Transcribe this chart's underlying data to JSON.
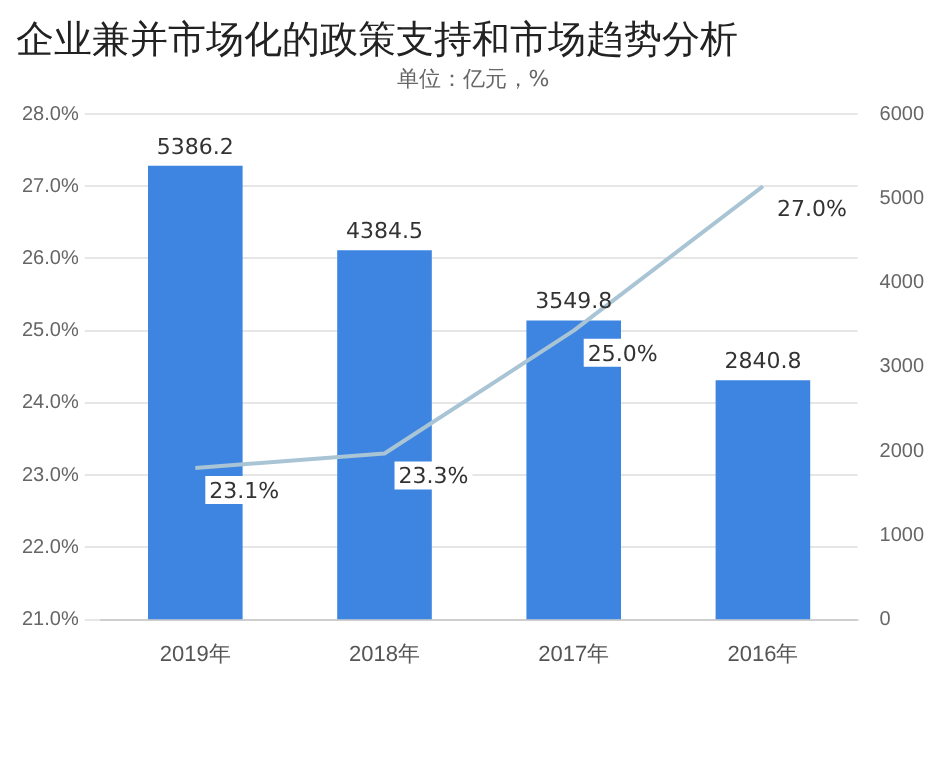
{
  "chart_data": {
    "type": "bar",
    "title": "企业兼并市场化的政策支持和市场趋势分析",
    "annotations": [
      "单位：亿元，%"
    ],
    "categories": [
      "2019年",
      "2018年",
      "2017年",
      "2016年"
    ],
    "series": [
      {
        "axis": "y2",
        "color": "#3d85e0",
        "values": [
          5386.2,
          4384.5,
          3549.8,
          2840.8
        ],
        "value_labels": [
          "5386.2",
          "4384.5",
          "3549.8",
          "2840.8"
        ]
      },
      {
        "type": "line",
        "axis": "y",
        "color": "#a9c4d4",
        "values": [
          23.1,
          23.3,
          25.0,
          27.0
        ],
        "value_labels": [
          "23.1%",
          "23.3%",
          "25.0%",
          "27.0%"
        ]
      }
    ],
    "ylim": [
      21,
      28
    ],
    "yticks": [
      {
        "value": 21,
        "label": "21.0%"
      },
      {
        "value": 22,
        "label": "22.0%"
      },
      {
        "value": 23,
        "label": "23.0%"
      },
      {
        "value": 24,
        "label": "24.0%"
      },
      {
        "value": 25,
        "label": "25.0%"
      },
      {
        "value": 26,
        "label": "26.0%"
      },
      {
        "value": 27,
        "label": "27.0%"
      },
      {
        "value": 28,
        "label": "28.0%"
      }
    ],
    "y2lim": [
      0,
      6000
    ],
    "y2ticks": [
      0,
      1000,
      2000,
      3000,
      4000,
      5000,
      6000
    ],
    "grid": "y",
    "legend": false
  }
}
